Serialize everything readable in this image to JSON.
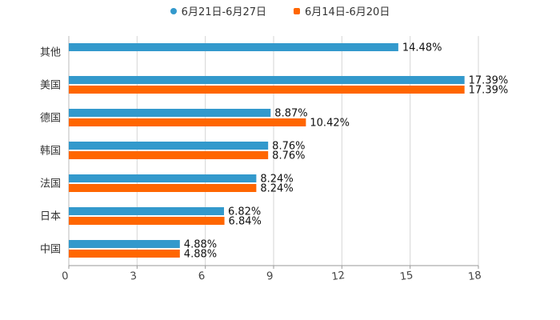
{
  "chart_data": {
    "type": "bar",
    "orientation": "horizontal",
    "categories": [
      "其他",
      "美国",
      "德国",
      "韩国",
      "法国",
      "日本",
      "中国"
    ],
    "series": [
      {
        "name": "6月21日-6月27日",
        "color": "#3399cc",
        "marker": "circle",
        "values": [
          14.48,
          17.39,
          8.87,
          8.76,
          8.24,
          6.82,
          4.88
        ],
        "labels": [
          "14.48%",
          "17.39%",
          "8.87%",
          "8.76%",
          "8.24%",
          "6.82%",
          "4.88%"
        ]
      },
      {
        "name": "6月14日-6月20日",
        "color": "#ff6600",
        "marker": "square",
        "values": [
          null,
          17.39,
          10.42,
          8.76,
          8.24,
          6.84,
          4.88
        ],
        "labels": [
          "",
          "17.39%",
          "10.42%",
          "8.76%",
          "8.24%",
          "6.84%",
          "4.88%"
        ]
      }
    ],
    "xlim": [
      0,
      18
    ],
    "xticks": [
      "0",
      "3",
      "6",
      "9",
      "12",
      "15",
      "18"
    ],
    "grid": true,
    "legend_position": "top-center",
    "title": "",
    "xlabel": "",
    "ylabel": ""
  }
}
